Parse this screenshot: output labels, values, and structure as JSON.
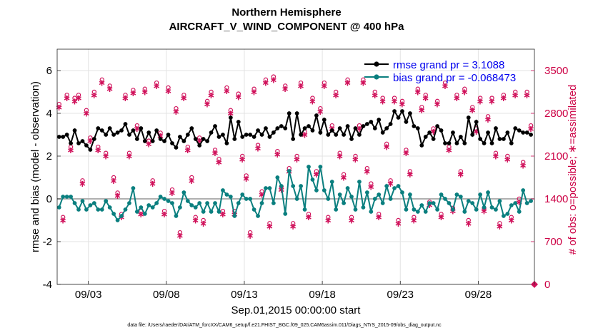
{
  "chart_data": {
    "type": "line",
    "title": "Northern Hemisphere",
    "subtitle": "AIRCRAFT_V_WIND_COMPONENT @ 400 hPa",
    "xlabel": "Sep.01,2015 00:00:00 start",
    "ylabel_left": "rmse and bias (model - observation)",
    "ylabel_right": "# of obs: o=possible; ∗=assimilated",
    "footnote": "data file: /Users/raeder/DAI/ATM_forcXX/CAM6_setup/f.e21.FHIST_BGC.f09_025.CAM6assim.011/Diags_NTrS_2015-09/obs_diag_output.nc",
    "xlim": [
      1,
      31.6
    ],
    "ylim_left": [
      -4,
      7
    ],
    "ylim_right": [
      0,
      3850
    ],
    "x_ticks": [
      3,
      8,
      13,
      18,
      23,
      28
    ],
    "x_tick_labels": [
      "09/03",
      "09/08",
      "09/13",
      "09/18",
      "09/23",
      "09/28"
    ],
    "y_ticks_left": [
      -4,
      -2,
      0,
      2,
      4,
      6
    ],
    "y_ticks_right": [
      0,
      700,
      1400,
      2100,
      2800,
      3500
    ],
    "legend": {
      "location": "top-right",
      "entries": [
        {
          "label": "rmse grand pr = 3.1088",
          "color": "#000000"
        },
        {
          "label": "bias grand pr = -0.068473",
          "color": "#0a7f7f"
        }
      ]
    },
    "colors": {
      "rmse": "#000000",
      "bias": "#0a7f7f",
      "obs": "#d0105a",
      "zero_line": "#b0b0b0",
      "grid": "#e3e3e3"
    },
    "x": [
      1.125,
      1.375,
      1.625,
      1.875,
      2.125,
      2.375,
      2.625,
      2.875,
      3.125,
      3.375,
      3.625,
      3.875,
      4.125,
      4.375,
      4.625,
      4.875,
      5.125,
      5.375,
      5.625,
      5.875,
      6.125,
      6.375,
      6.625,
      6.875,
      7.125,
      7.375,
      7.625,
      7.875,
      8.125,
      8.375,
      8.625,
      8.875,
      9.125,
      9.375,
      9.625,
      9.875,
      10.125,
      10.375,
      10.625,
      10.875,
      11.125,
      11.375,
      11.625,
      11.875,
      12.125,
      12.375,
      12.625,
      12.875,
      13.125,
      13.375,
      13.625,
      13.875,
      14.125,
      14.375,
      14.625,
      14.875,
      15.125,
      15.375,
      15.625,
      15.875,
      16.125,
      16.375,
      16.625,
      16.875,
      17.125,
      17.375,
      17.625,
      17.875,
      18.125,
      18.375,
      18.625,
      18.875,
      19.125,
      19.375,
      19.625,
      19.875,
      20.125,
      20.375,
      20.625,
      20.875,
      21.125,
      21.375,
      21.625,
      21.875,
      22.125,
      22.375,
      22.625,
      22.875,
      23.125,
      23.375,
      23.625,
      23.875,
      24.125,
      24.375,
      24.625,
      24.875,
      25.125,
      25.375,
      25.625,
      25.875,
      26.125,
      26.375,
      26.625,
      26.875,
      27.125,
      27.375,
      27.625,
      27.875,
      28.125,
      28.375,
      28.625,
      28.875,
      29.125,
      29.375,
      29.625,
      29.875,
      30.125,
      30.375,
      30.625,
      30.875,
      31.125,
      31.375
    ],
    "series": [
      {
        "name": "rmse",
        "axis": "left",
        "values": [
          2.9,
          2.9,
          3.0,
          2.6,
          3.2,
          2.6,
          2.7,
          2.5,
          2.3,
          2.8,
          3.3,
          3.2,
          3.0,
          3.3,
          3.0,
          3.1,
          3.2,
          3.5,
          3.0,
          3.2,
          2.8,
          3.3,
          2.7,
          3.1,
          2.7,
          3.2,
          2.8,
          2.7,
          3.0,
          2.6,
          2.4,
          2.9,
          2.7,
          3.0,
          3.3,
          2.8,
          2.5,
          2.8,
          2.7,
          3.1,
          3.4,
          2.9,
          3.0,
          2.6,
          3.8,
          2.8,
          3.6,
          2.9,
          3.0,
          3.0,
          2.9,
          3.2,
          3.0,
          3.3,
          2.9,
          3.1,
          3.3,
          3.4,
          3.3,
          4.0,
          2.8,
          4.0,
          3.0,
          3.3,
          3.4,
          3.2,
          3.9,
          3.1,
          3.7,
          3.0,
          3.2,
          3.0,
          3.3,
          3.0,
          3.4,
          2.8,
          3.3,
          3.0,
          3.4,
          3.5,
          3.6,
          3.3,
          3.7,
          3.1,
          3.3,
          3.5,
          4.1,
          3.8,
          4.1,
          3.6,
          4.0,
          3.4,
          3.3,
          2.5,
          2.9,
          3.1,
          2.8,
          3.4,
          3.2,
          2.6,
          2.6,
          3.1,
          2.6,
          2.9,
          2.6,
          3.8,
          3.0,
          3.6,
          2.8,
          2.6,
          3.1,
          2.6,
          3.3,
          2.8,
          2.8,
          3.1,
          2.6,
          3.3,
          3.2,
          3.1,
          3.1,
          3.0
        ]
      },
      {
        "name": "bias",
        "axis": "left",
        "values": [
          -0.4,
          0.1,
          0.1,
          0.1,
          -0.2,
          -0.5,
          -0.1,
          -0.5,
          -0.3,
          -0.2,
          -0.5,
          -0.5,
          -0.1,
          -0.4,
          -0.7,
          -1.0,
          -0.8,
          -0.5,
          -0.2,
          0.5,
          -0.6,
          -0.4,
          -0.7,
          -0.3,
          -0.4,
          -0.2,
          0.1,
          0.0,
          -0.1,
          -0.2,
          -0.8,
          -0.4,
          0.3,
          -0.1,
          -0.3,
          -0.4,
          -0.2,
          -0.6,
          -0.2,
          -0.6,
          -0.2,
          -0.6,
          0.4,
          0.2,
          0.1,
          -0.8,
          -0.2,
          0.2,
          0.0,
          0.0,
          -0.5,
          -0.8,
          -0.2,
          0.5,
          0.5,
          -0.2,
          1.0,
          0.6,
          -0.7,
          1.3,
          0.6,
          0.0,
          0.6,
          -0.5,
          1.5,
          0.9,
          0.4,
          1.5,
          0.4,
          0.0,
          0.8,
          -0.5,
          0.2,
          -0.2,
          0.5,
          0.1,
          -0.5,
          0.8,
          -0.4,
          0.3,
          -0.6,
          0.0,
          0.2,
          -0.2,
          0.6,
          0.0,
          0.5,
          0.6,
          0.3,
          -0.5,
          0.2,
          -0.5,
          -0.6,
          -0.3,
          -0.6,
          -0.2,
          -0.2,
          -0.5,
          0.2,
          0.0,
          -0.2,
          -0.5,
          0.2,
          0.1,
          -0.6,
          -0.1,
          -0.2,
          -0.5,
          0.2,
          -0.4,
          0.3,
          -0.4,
          -0.5,
          -0.1,
          -0.8,
          -0.7,
          -0.3,
          -0.2,
          -0.6,
          0.4,
          -0.2,
          -0.1
        ]
      },
      {
        "name": "# of obs possible",
        "axis": "right",
        "marker": "o",
        "values": [
          2950,
          1100,
          3100,
          2250,
          3050,
          3100,
          1700,
          2850,
          2400,
          3150,
          2250,
          3350,
          2150,
          3250,
          1750,
          1500,
          1150,
          3100,
          2150,
          3180,
          2600,
          1200,
          3200,
          2350,
          1700,
          3300,
          2480,
          1200,
          3220,
          1550,
          2880,
          850,
          3100,
          2250,
          1750,
          1100,
          2400,
          1050,
          3000,
          3150,
          2200,
          2050,
          1200,
          3220,
          2850,
          1200,
          3120,
          2100,
          1780,
          850,
          3200,
          2280,
          1520,
          3350,
          1000,
          3400,
          2180,
          1600,
          3250,
          1900,
          1000,
          2100,
          3300,
          2500,
          1150,
          3050,
          1850,
          2880,
          3300,
          1100,
          2600,
          3150,
          2150,
          1800,
          3350,
          1100,
          2100,
          2600,
          3350,
          1900,
          1650,
          3150,
          1150,
          3050,
          2300,
          1700,
          3050,
          1050,
          3000,
          2200,
          1850,
          1100,
          3200,
          2900,
          3100,
          1350,
          2550,
          3000,
          1150,
          3300,
          2250,
          1250,
          3100,
          1850,
          3200,
          1050,
          2900,
          2550,
          3050,
          1250,
          2750,
          3050,
          2150,
          1000,
          3100,
          2100,
          1100,
          3150,
          1400,
          2000,
          3150,
          2600
        ]
      },
      {
        "name": "# of obs assimilated",
        "axis": "right",
        "marker": "*",
        "values": [
          2900,
          1050,
          3050,
          2200,
          3000,
          3050,
          1650,
          2800,
          2350,
          3100,
          2200,
          3300,
          2100,
          3200,
          1700,
          1450,
          1100,
          3050,
          2100,
          3130,
          2550,
          1150,
          3150,
          2300,
          1650,
          3250,
          2430,
          1150,
          3170,
          1500,
          2830,
          800,
          3050,
          2200,
          1700,
          1050,
          2350,
          1000,
          2950,
          3100,
          2150,
          2000,
          1150,
          3170,
          2800,
          1150,
          3070,
          2050,
          1730,
          800,
          3150,
          2230,
          1470,
          3300,
          950,
          3350,
          2130,
          1550,
          3200,
          1850,
          950,
          2050,
          3250,
          2450,
          1100,
          3000,
          1800,
          2830,
          3250,
          1050,
          2550,
          3100,
          2100,
          1750,
          3300,
          1050,
          2050,
          2550,
          3300,
          1850,
          1600,
          3100,
          1100,
          3000,
          2250,
          1650,
          3000,
          1000,
          2950,
          2150,
          1800,
          1050,
          3150,
          2850,
          3050,
          1300,
          2500,
          2950,
          1100,
          3250,
          2200,
          1200,
          3050,
          1800,
          3150,
          1000,
          2850,
          2500,
          3000,
          1200,
          2700,
          3000,
          2100,
          950,
          3050,
          2050,
          1050,
          3100,
          1350,
          1950,
          3100,
          2550
        ]
      }
    ]
  }
}
